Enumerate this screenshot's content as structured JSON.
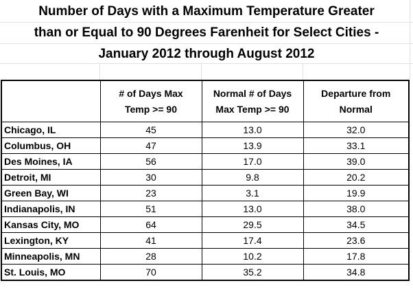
{
  "title": {
    "line1": "Number of Days with a Maximum Temperature Greater",
    "line2": "than or Equal to 90 Degrees Farenheit for Select Cities -",
    "line3": "January 2012 through August 2012"
  },
  "table": {
    "headers": [
      "",
      "# of Days Max\nTemp >= 90",
      "Normal # of Days\nMax Temp >= 90",
      "Departure from\nNormal"
    ],
    "header_lines": [
      [
        "",
        ""
      ],
      [
        "# of Days Max",
        "Temp >= 90"
      ],
      [
        "Normal # of Days",
        "Max Temp >= 90"
      ],
      [
        "Departure from",
        "Normal"
      ]
    ],
    "rows": [
      [
        "Chicago, IL",
        "45",
        "13.0",
        "32.0"
      ],
      [
        "Columbus, OH",
        "47",
        "13.9",
        "33.1"
      ],
      [
        "Des Moines, IA",
        "56",
        "17.0",
        "39.0"
      ],
      [
        "Detroit, MI",
        "30",
        "9.8",
        "20.2"
      ],
      [
        "Green Bay, WI",
        "23",
        "3.1",
        "19.9"
      ],
      [
        "Indianapolis, IN",
        "51",
        "13.0",
        "38.0"
      ],
      [
        "Kansas City, MO",
        "64",
        "29.5",
        "34.5"
      ],
      [
        "Lexington, KY",
        "41",
        "17.4",
        "23.6"
      ],
      [
        "Minneapolis, MN",
        "28",
        "10.2",
        "17.8"
      ],
      [
        "St. Louis, MO",
        "70",
        "35.2",
        "34.8"
      ]
    ]
  }
}
